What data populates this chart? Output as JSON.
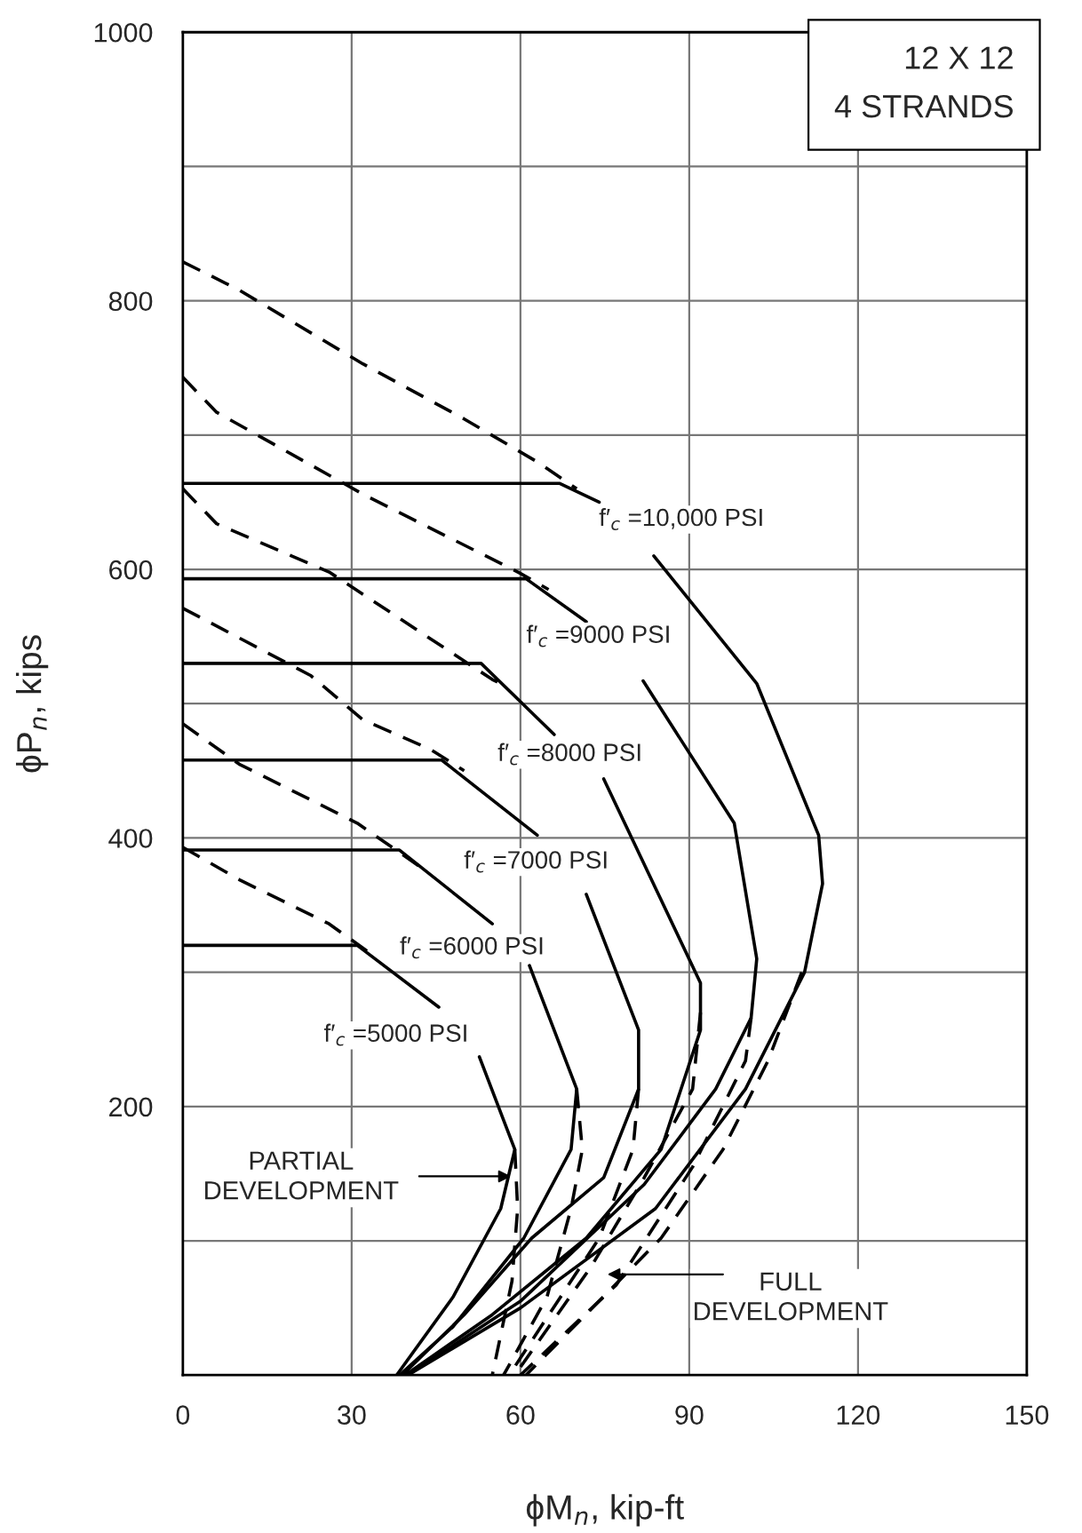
{
  "chart_data": {
    "type": "line",
    "xlabel": "ϕM$_{n}$, kip-ft",
    "ylabel": "ϕP$_{n}$, kips",
    "xlim": [
      0,
      150
    ],
    "ylim": [
      0,
      1000
    ],
    "xticks": [
      0,
      30,
      60,
      90,
      120,
      150
    ],
    "yticks": [
      {
        "value": 0,
        "label": null
      },
      {
        "value": 100,
        "label": null
      },
      200,
      {
        "value": 300,
        "label": null
      },
      400,
      {
        "value": 500,
        "label": null
      },
      600,
      {
        "value": 700,
        "label": null
      },
      800,
      {
        "value": 900,
        "label": null
      },
      1000
    ],
    "grid": true,
    "legend": false,
    "marker": "none",
    "series": [
      {
        "color": "#000000",
        "line_style": "solid",
        "x": [
          0,
          67,
          74,
          79,
          83.7,
          102,
          113,
          113.7,
          110.5,
          100,
          84,
          60,
          40
        ],
        "values": [
          664,
          664,
          650,
          null,
          610,
          515,
          402,
          366,
          300,
          213,
          124,
          50,
          0
        ]
      },
      {
        "color": "#000000",
        "line_style": "solid",
        "x": [
          0,
          61,
          71.7,
          77,
          81.8,
          98,
          102,
          101,
          94.7,
          82,
          60,
          40
        ],
        "values": [
          593,
          593,
          561,
          null,
          517,
          411,
          310,
          266,
          213,
          142,
          55,
          0
        ]
      },
      {
        "color": "#000000",
        "line_style": "solid",
        "x": [
          0,
          53,
          66,
          70,
          74.8,
          92,
          92,
          85,
          71.7,
          55,
          39.5
        ],
        "values": [
          530,
          530,
          477,
          null,
          444,
          292,
          257,
          168,
          102,
          45,
          0
        ]
      },
      {
        "color": "#000000",
        "line_style": "solid",
        "x": [
          0,
          46,
          63,
          67,
          71.7,
          81,
          81,
          74.8,
          62,
          50,
          39
        ],
        "values": [
          458,
          458,
          402,
          null,
          358,
          257,
          213,
          147,
          102,
          45,
          0
        ]
      },
      {
        "color": "#000000",
        "line_style": "solid",
        "x": [
          0,
          38.5,
          55,
          58,
          61.6,
          70,
          69,
          60.6,
          48,
          38.5
        ],
        "values": [
          391,
          391,
          336,
          null,
          305,
          213,
          168,
          102,
          36,
          0
        ]
      },
      {
        "color": "#000000",
        "line_style": "solid",
        "x": [
          0,
          31,
          45.5,
          49,
          52.7,
          59,
          56.5,
          48,
          38
        ],
        "values": [
          320,
          320,
          274,
          null,
          237,
          168,
          124,
          58,
          0
        ]
      },
      {
        "color": "#000000",
        "line_style": "dashed",
        "x": [
          0,
          10,
          32,
          50,
          63,
          70,
          72,
          110,
          104,
          96,
          85,
          61
        ],
        "values": [
          829,
          808,
          753,
          712,
          680,
          660,
          null,
          300,
          234,
          168,
          102,
          0
        ]
      },
      {
        "color": "#000000",
        "line_style": "dashed",
        "x": [
          0,
          6,
          32,
          60,
          65,
          80,
          101,
          100,
          90.6,
          77,
          60
        ],
        "values": [
          743,
          717,
          656,
          597,
          585,
          null,
          266,
          234,
          155,
          67,
          0
        ]
      },
      {
        "color": "#000000",
        "line_style": "dashed",
        "x": [
          0,
          6,
          26,
          55,
          57,
          75,
          92,
          90.6,
          82,
          72.6,
          59
        ],
        "values": [
          660,
          634,
          598,
          518,
          514,
          null,
          270,
          213,
          147,
          81,
          0
        ]
      },
      {
        "color": "#000000",
        "line_style": "dashed",
        "x": [
          0,
          22.7,
          32,
          44,
          50,
          65,
          81,
          80,
          74,
          58
        ],
        "values": [
          571,
          521,
          488,
          466,
          450,
          null,
          213,
          168,
          102,
          0
        ]
      },
      {
        "color": "#000000",
        "line_style": "dashed",
        "x": [
          0,
          10,
          31,
          42,
          55,
          70,
          71,
          69,
          64.7,
          57
        ],
        "values": [
          485,
          455,
          411,
          379,
          null,
          213,
          168,
          124,
          58,
          0
        ]
      },
      {
        "color": "#000000",
        "line_style": "dashed",
        "x": [
          0,
          10,
          26,
          33,
          45,
          59,
          59.5,
          58.5,
          55
        ],
        "values": [
          393,
          369,
          336,
          315,
          null,
          168,
          124,
          70,
          0
        ]
      }
    ],
    "annotations": [
      "12 X 12\n4 STRANDS",
      "f′$_{c}$ =10,000 PSI",
      "f′$_{c}$ =9000 PSI",
      "f′$_{c}$ =8000 PSI",
      "f′$_{c}$ =7000 PSI",
      "f′$_{c}$ =6000 PSI",
      "f′$_{c}$ =5000 PSI",
      "PARTIAL\nDEVELOPMENT",
      "FULL\nDEVELOPMENT"
    ]
  }
}
